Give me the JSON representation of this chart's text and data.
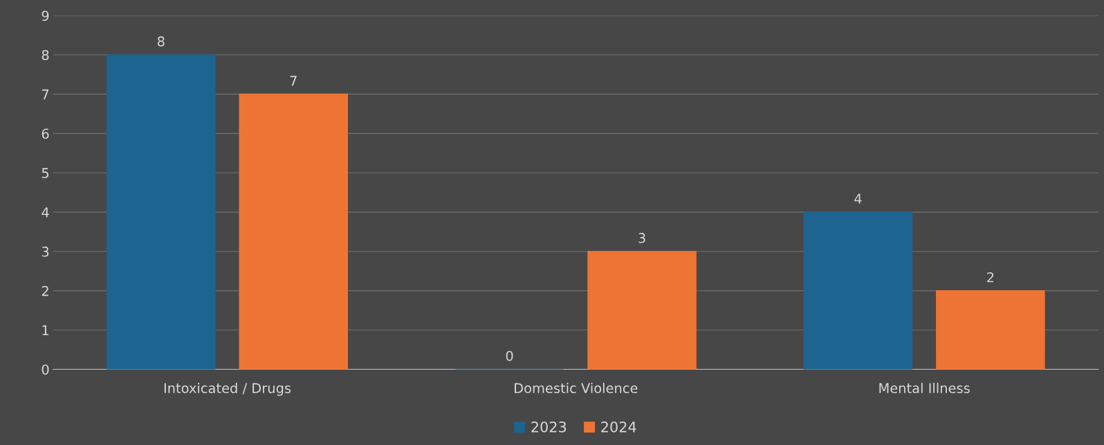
{
  "chart_data": {
    "type": "bar",
    "categories": [
      "Intoxicated / Drugs",
      "Domestic Violence",
      "Mental Illness"
    ],
    "series": [
      {
        "name": "2023",
        "color": "#1d6490",
        "values": [
          8,
          0,
          4
        ]
      },
      {
        "name": "2024",
        "color": "#ee7433",
        "values": [
          7,
          3,
          2
        ]
      }
    ],
    "ylim": [
      0,
      9
    ],
    "yticks": [
      0,
      1,
      2,
      3,
      4,
      5,
      6,
      7,
      8,
      9
    ],
    "grid": "y",
    "legend": "bottom",
    "data_labels": true
  }
}
